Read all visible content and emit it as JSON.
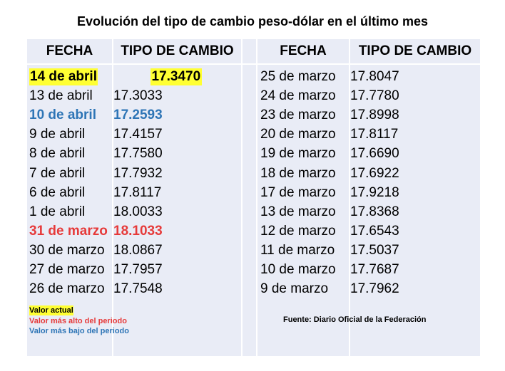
{
  "header": {
    "title": "Evolución del tipo de cambio peso-dólar en el último mes"
  },
  "table": {
    "columns": [
      "FECHA",
      "TIPO DE CAMBIO",
      "FECHA",
      "TIPO DE CAMBIO"
    ],
    "left_rows": [
      {
        "date": "14 de abril",
        "rate": "17.3470",
        "background": "#ffff33"
      },
      {
        "date": "13 de abril",
        "rate": "17.3033"
      },
      {
        "date": "10 de abril",
        "rate": "17.2593",
        "color": "#2e75b6"
      },
      {
        "date": "9 de abril",
        "rate": "17.4157"
      },
      {
        "date": "8 de abril",
        "rate": "17.7580"
      },
      {
        "date": "7 de abril",
        "rate": "17.7932"
      },
      {
        "date": "6 de abril",
        "rate": "17.8117"
      },
      {
        "date": "1 de abril",
        "rate": "18.0033"
      },
      {
        "date": "31 de marzo",
        "rate": "18.1033",
        "color": "#e63a3a"
      },
      {
        "date": "30 de marzo",
        "rate": "18.0867"
      },
      {
        "date": "27 de marzo",
        "rate": "17.7957"
      },
      {
        "date": "26 de marzo",
        "rate": "17.7548"
      }
    ],
    "right_rows": [
      {
        "date": "25 de marzo",
        "rate": "17.8047"
      },
      {
        "date": "24 de marzo",
        "rate": "17.7780"
      },
      {
        "date": "23 de marzo",
        "rate": "17.8998"
      },
      {
        "date": "20 de marzo",
        "rate": "17.8117"
      },
      {
        "date": "19 de marzo",
        "rate": "17.6690"
      },
      {
        "date": "18 de marzo",
        "rate": "17.6922"
      },
      {
        "date": "17 de marzo",
        "rate": "17.9218"
      },
      {
        "date": "13 de marzo",
        "rate": "17.8368"
      },
      {
        "date": "12 de marzo",
        "rate": "17.6543"
      },
      {
        "date": "11 de marzo",
        "rate": "17.5037"
      },
      {
        "date": "10 de marzo",
        "rate": "17.7687"
      },
      {
        "date": "9 de marzo",
        "rate": "17.7962"
      }
    ]
  },
  "legend": [
    {
      "label": "Valor actual",
      "background": "#ffff33",
      "color": "#000000"
    },
    {
      "label": "Valor más alto del periodo",
      "color": "#e63a3a"
    },
    {
      "label": "Valor más bajo del periodo",
      "color": "#2e75b6"
    }
  ],
  "source": "Fuente: Diario Oficial de la Federación"
}
